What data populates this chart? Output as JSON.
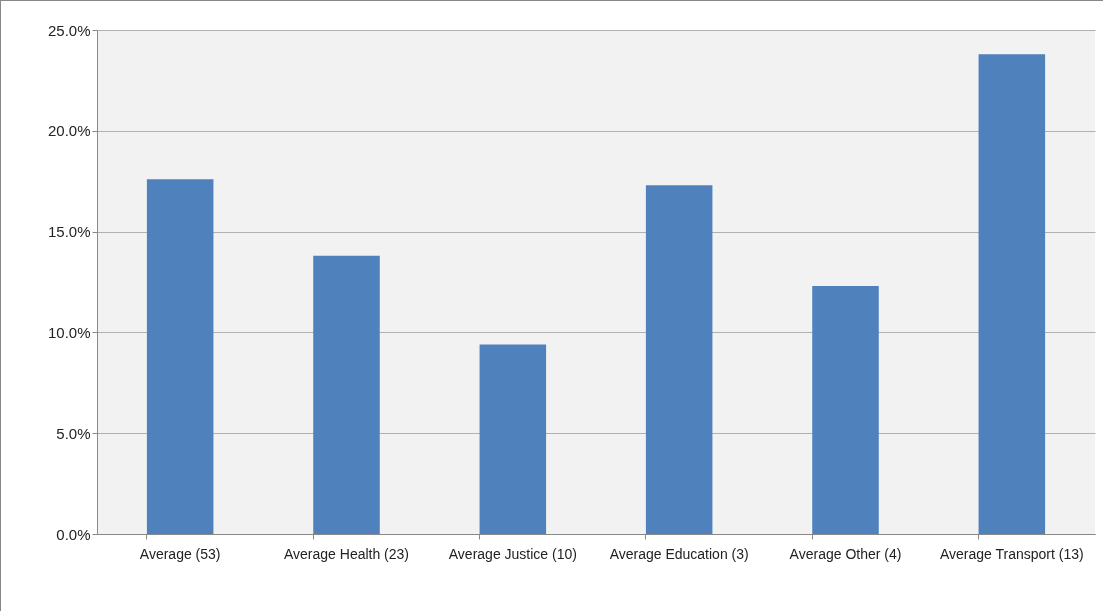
{
  "chart_data": {
    "type": "bar",
    "categories": [
      "Average (53)",
      "Average Health (23)",
      "Average Justice (10)",
      "Average Education (3)",
      "Average Other (4)",
      "Average Transport (13)"
    ],
    "values": [
      17.6,
      13.8,
      9.4,
      17.3,
      12.3,
      23.8
    ],
    "color": "#4f81bd",
    "ylim": [
      0,
      25
    ],
    "yticks": [
      {
        "value": 0,
        "label": "0.0%"
      },
      {
        "value": 5,
        "label": "5.0%"
      },
      {
        "value": 10,
        "label": "10.0%"
      },
      {
        "value": 15,
        "label": "15.0%"
      },
      {
        "value": 20,
        "label": "20.0%"
      },
      {
        "value": 25,
        "label": "25.0%"
      }
    ],
    "grid": "y"
  }
}
